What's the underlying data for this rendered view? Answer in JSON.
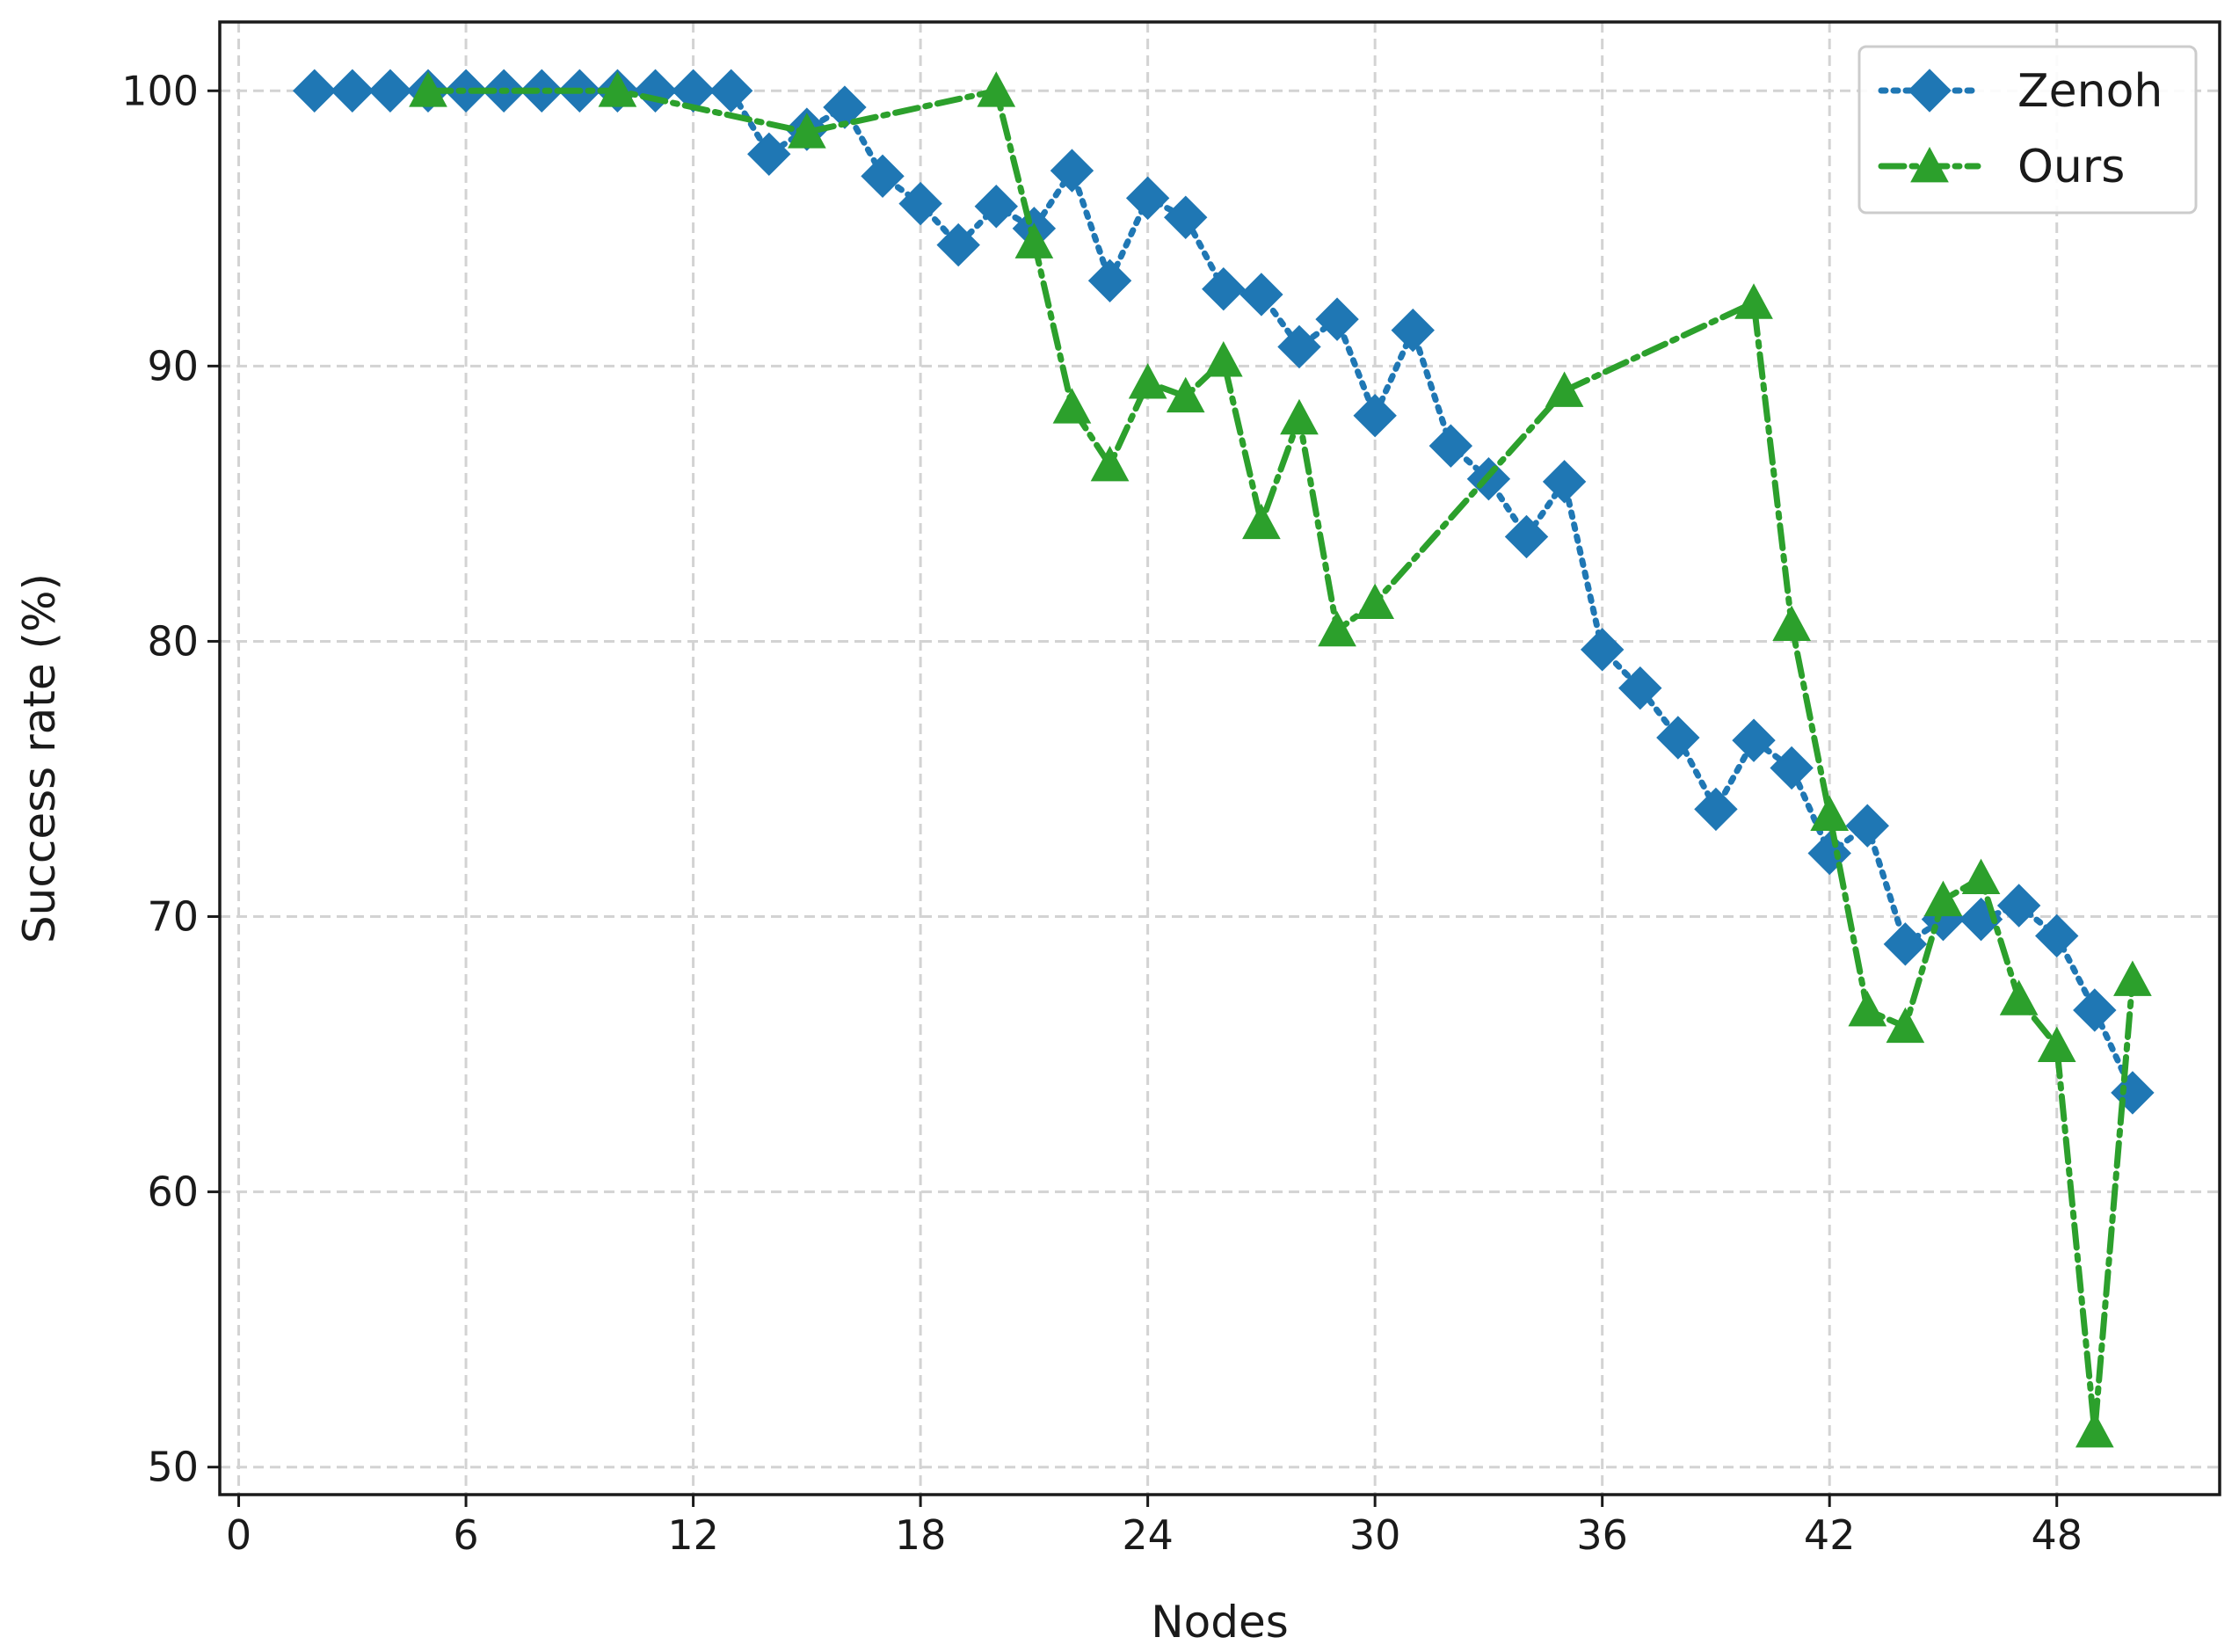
{
  "chart_data": {
    "type": "line",
    "title": "",
    "xlabel": "Nodes",
    "ylabel": "Success rate (%)",
    "xlim": [
      -0.5,
      52.3
    ],
    "ylim": [
      49,
      102.5
    ],
    "xticks": [
      0,
      6,
      12,
      18,
      24,
      30,
      36,
      42,
      48
    ],
    "yticks": [
      50,
      60,
      70,
      80,
      90,
      100
    ],
    "xtick_labels": [
      "0",
      "6",
      "12",
      "18",
      "24",
      "30",
      "36",
      "42",
      "48"
    ],
    "ytick_labels": [
      "50",
      "60",
      "70",
      "80",
      "90",
      "100"
    ],
    "grid": true,
    "legend_position": "top-right",
    "series": [
      {
        "name": "Zenoh",
        "color": "#1f77b4",
        "marker": "diamond",
        "linestyle": "dotted",
        "x": [
          2,
          3,
          4,
          5,
          6,
          7,
          8,
          9,
          10,
          11,
          12,
          13,
          14,
          15,
          16,
          17,
          18,
          19,
          20,
          21,
          22,
          23,
          24,
          25,
          26,
          27,
          28,
          29,
          30,
          31,
          32,
          33,
          34,
          35,
          36,
          37,
          38,
          39,
          40,
          41,
          42,
          43,
          44,
          45,
          46,
          47,
          48,
          49,
          50
        ],
        "y": [
          100,
          100,
          100,
          100,
          100,
          100,
          100,
          100,
          100,
          100,
          100,
          100,
          97.7,
          98.6,
          99.4,
          96.9,
          95.9,
          94.4,
          95.8,
          95.0,
          97.1,
          93.1,
          96.1,
          95.4,
          92.8,
          92.6,
          90.7,
          91.7,
          88.2,
          91.3,
          87.1,
          85.9,
          83.8,
          85.8,
          79.7,
          78.3,
          76.5,
          73.9,
          76.4,
          75.4,
          72.3,
          73.3,
          69.0,
          69.9,
          69.9,
          70.4,
          69.3,
          66.6,
          63.6
        ]
      },
      {
        "name": "Ours",
        "color": "#2ca02c",
        "marker": "triangle",
        "linestyle": "dashdot",
        "x": [
          5,
          10,
          15,
          20,
          21,
          22,
          23,
          24,
          25,
          26,
          27,
          28,
          29,
          30,
          35,
          40,
          41,
          42,
          43,
          44,
          45,
          46,
          47,
          48,
          49,
          50
        ],
        "y": [
          100,
          100,
          98.5,
          100,
          94.5,
          88.5,
          86.4,
          89.4,
          88.9,
          90.2,
          84.3,
          88.1,
          80.4,
          81.4,
          89.1,
          92.3,
          80.6,
          73.7,
          66.6,
          66.0,
          70.6,
          71.4,
          67.0,
          65.3,
          51.3,
          67.7
        ]
      }
    ]
  }
}
